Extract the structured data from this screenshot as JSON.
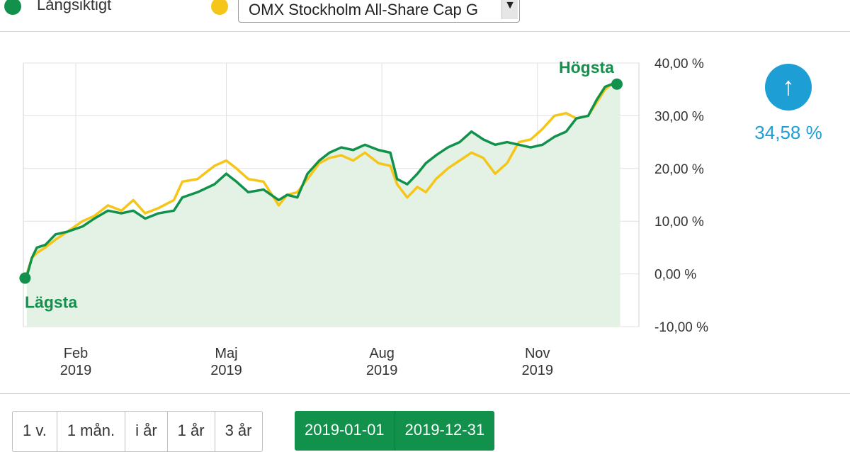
{
  "legend": {
    "series_a_label": "Långsiktigt",
    "series_a_color": "#11914b",
    "series_b_color": "#f5c518",
    "compare_select_value": "OMX Stockholm All-Share Cap G"
  },
  "change": {
    "icon": "arrow-up-icon",
    "value": "34,58 %",
    "color": "#1d9fd6"
  },
  "period_buttons": [
    "1 v.",
    "1 mån.",
    "i år",
    "1 år",
    "3 år"
  ],
  "date_range": {
    "from": "2019-01-01",
    "to": "2019-12-31"
  },
  "chart_data": {
    "type": "line",
    "x_unit": "date",
    "xlim": [
      "2019-01-01",
      "2019-12-31"
    ],
    "ylim": [
      -10,
      40
    ],
    "y_ticks": [
      -10,
      0,
      10,
      20,
      30,
      40
    ],
    "y_tick_labels": [
      "-10,00 %",
      "0,00 %",
      "10,00 %",
      "20,00 %",
      "30,00 %",
      "40,00 %"
    ],
    "x_ticks": [
      {
        "date": "2019-02-01",
        "month": "Feb",
        "year": "2019"
      },
      {
        "date": "2019-05-01",
        "month": "Maj",
        "year": "2019"
      },
      {
        "date": "2019-08-01",
        "month": "Aug",
        "year": "2019"
      },
      {
        "date": "2019-11-01",
        "month": "Nov",
        "year": "2019"
      }
    ],
    "grid": true,
    "series": [
      {
        "name": "Långsiktigt",
        "color": "#11914b",
        "area_fill": true,
        "points": [
          [
            "2019-01-03",
            -0.5
          ],
          [
            "2019-01-06",
            3
          ],
          [
            "2019-01-09",
            5
          ],
          [
            "2019-01-14",
            5.5
          ],
          [
            "2019-01-20",
            7.5
          ],
          [
            "2019-01-27",
            8
          ],
          [
            "2019-02-05",
            9
          ],
          [
            "2019-02-12",
            10.5
          ],
          [
            "2019-02-20",
            12
          ],
          [
            "2019-02-28",
            11.5
          ],
          [
            "2019-03-07",
            12
          ],
          [
            "2019-03-14",
            10.5
          ],
          [
            "2019-03-22",
            11.5
          ],
          [
            "2019-03-31",
            12
          ],
          [
            "2019-04-05",
            14.5
          ],
          [
            "2019-04-14",
            15.5
          ],
          [
            "2019-04-24",
            17
          ],
          [
            "2019-05-01",
            19
          ],
          [
            "2019-05-07",
            17.5
          ],
          [
            "2019-05-14",
            15.5
          ],
          [
            "2019-05-23",
            16
          ],
          [
            "2019-06-01",
            14
          ],
          [
            "2019-06-06",
            15
          ],
          [
            "2019-06-12",
            14.5
          ],
          [
            "2019-06-18",
            19
          ],
          [
            "2019-06-25",
            21.5
          ],
          [
            "2019-07-01",
            23
          ],
          [
            "2019-07-08",
            24
          ],
          [
            "2019-07-15",
            23.5
          ],
          [
            "2019-07-22",
            24.5
          ],
          [
            "2019-07-30",
            23.5
          ],
          [
            "2019-08-06",
            23
          ],
          [
            "2019-08-10",
            18
          ],
          [
            "2019-08-16",
            17
          ],
          [
            "2019-08-22",
            19
          ],
          [
            "2019-08-27",
            21
          ],
          [
            "2019-09-02",
            22.5
          ],
          [
            "2019-09-09",
            24
          ],
          [
            "2019-09-16",
            25
          ],
          [
            "2019-09-23",
            27
          ],
          [
            "2019-09-30",
            25.5
          ],
          [
            "2019-10-07",
            24.5
          ],
          [
            "2019-10-14",
            25
          ],
          [
            "2019-10-21",
            24.5
          ],
          [
            "2019-10-28",
            24
          ],
          [
            "2019-11-04",
            24.5
          ],
          [
            "2019-11-11",
            26
          ],
          [
            "2019-11-18",
            27
          ],
          [
            "2019-11-24",
            29.5
          ],
          [
            "2019-12-01",
            30
          ],
          [
            "2019-12-06",
            33
          ],
          [
            "2019-12-11",
            35.5
          ],
          [
            "2019-12-15",
            36
          ],
          [
            "2019-12-20",
            35.5
          ]
        ]
      },
      {
        "name": "OMX Stockholm All-Share Cap G",
        "color": "#f5c518",
        "area_fill": false,
        "points": [
          [
            "2019-01-03",
            0
          ],
          [
            "2019-01-06",
            3
          ],
          [
            "2019-01-09",
            4
          ],
          [
            "2019-01-14",
            5
          ],
          [
            "2019-01-20",
            6.5
          ],
          [
            "2019-01-27",
            8
          ],
          [
            "2019-02-05",
            10
          ],
          [
            "2019-02-12",
            11
          ],
          [
            "2019-02-20",
            13
          ],
          [
            "2019-02-28",
            12
          ],
          [
            "2019-03-07",
            14
          ],
          [
            "2019-03-14",
            11.5
          ],
          [
            "2019-03-22",
            12.5
          ],
          [
            "2019-03-31",
            14
          ],
          [
            "2019-04-05",
            17.5
          ],
          [
            "2019-04-14",
            18
          ],
          [
            "2019-04-24",
            20.5
          ],
          [
            "2019-05-01",
            21.5
          ],
          [
            "2019-05-07",
            20
          ],
          [
            "2019-05-14",
            18
          ],
          [
            "2019-05-23",
            17.5
          ],
          [
            "2019-06-01",
            13
          ],
          [
            "2019-06-06",
            15
          ],
          [
            "2019-06-12",
            15.5
          ],
          [
            "2019-06-18",
            18
          ],
          [
            "2019-06-25",
            21
          ],
          [
            "2019-07-01",
            22
          ],
          [
            "2019-07-08",
            22.5
          ],
          [
            "2019-07-15",
            21.5
          ],
          [
            "2019-07-22",
            23
          ],
          [
            "2019-07-30",
            21
          ],
          [
            "2019-08-06",
            20.5
          ],
          [
            "2019-08-10",
            17
          ],
          [
            "2019-08-16",
            14.5
          ],
          [
            "2019-08-22",
            16.5
          ],
          [
            "2019-08-27",
            15.5
          ],
          [
            "2019-09-02",
            18
          ],
          [
            "2019-09-09",
            20
          ],
          [
            "2019-09-16",
            21.5
          ],
          [
            "2019-09-23",
            23
          ],
          [
            "2019-09-30",
            22
          ],
          [
            "2019-10-07",
            19
          ],
          [
            "2019-10-14",
            21
          ],
          [
            "2019-10-21",
            25
          ],
          [
            "2019-10-28",
            25.5
          ],
          [
            "2019-11-04",
            27.5
          ],
          [
            "2019-11-11",
            30
          ],
          [
            "2019-11-18",
            30.5
          ],
          [
            "2019-11-24",
            29.5
          ],
          [
            "2019-12-01",
            30
          ],
          [
            "2019-12-06",
            32.5
          ],
          [
            "2019-12-11",
            35
          ],
          [
            "2019-12-15",
            36
          ],
          [
            "2019-12-20",
            35.5
          ]
        ]
      }
    ],
    "annotations": {
      "max": {
        "label": "Högsta",
        "date": "2019-12-18",
        "value": 36
      },
      "min": {
        "label": "Lägsta",
        "date": "2019-01-02",
        "value": -0.8
      }
    }
  }
}
